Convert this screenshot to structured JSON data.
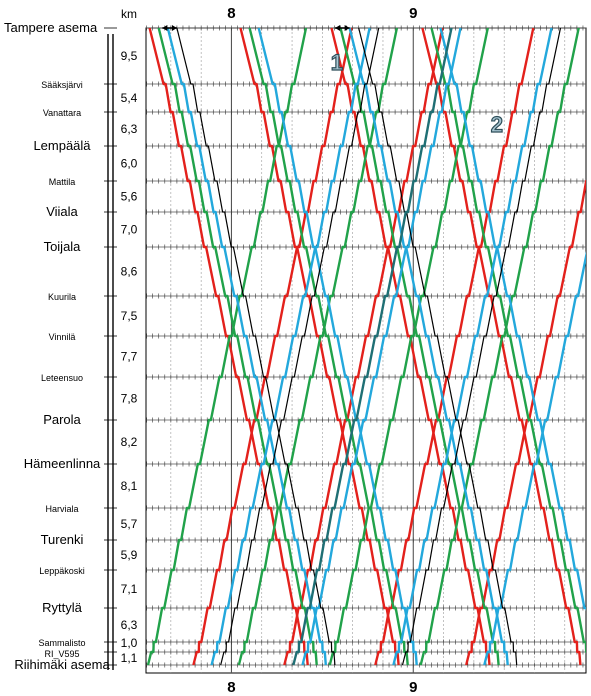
{
  "chart_data": {
    "type": "line",
    "title": "",
    "km_label": "km",
    "hour_labels": [
      {
        "hour": 8,
        "label": "8"
      },
      {
        "hour": 9,
        "label": "9"
      }
    ],
    "x_range_hours": [
      7.53,
      9.95
    ],
    "stations": [
      {
        "name": "Tampere asema",
        "major": true
      },
      {
        "name": "Sääksjärvi",
        "major": false
      },
      {
        "name": "Vanattara",
        "major": false
      },
      {
        "name": "Lempäälä",
        "major": true
      },
      {
        "name": "Mattila",
        "major": false
      },
      {
        "name": "Viiala",
        "major": true
      },
      {
        "name": "Toijala",
        "major": true
      },
      {
        "name": "Kuurila",
        "major": false
      },
      {
        "name": "Vinnilä",
        "major": false
      },
      {
        "name": "Leteensuo",
        "major": false
      },
      {
        "name": "Parola",
        "major": true
      },
      {
        "name": "Hämeenlinna",
        "major": true
      },
      {
        "name": "Harviala",
        "major": false
      },
      {
        "name": "Turenki",
        "major": true
      },
      {
        "name": "Leppäkoski",
        "major": false
      },
      {
        "name": "Ryttylä",
        "major": true
      },
      {
        "name": "Sammalisto",
        "major": false
      },
      {
        "name": "RI_V595",
        "major": false
      },
      {
        "name": "Riihimäki asema",
        "major": true
      }
    ],
    "section_km": [
      "9,5",
      "5,4",
      "6,3",
      "6,0",
      "5,6",
      "7,0",
      "8,6",
      "7,5",
      "7,7",
      "7,8",
      "8,2",
      "8,1",
      "5,7",
      "5,9",
      "7,1",
      "6,3",
      "1,0",
      "1,1"
    ],
    "colors": {
      "red": "#e3211c",
      "green": "#21a24a",
      "blue": "#23a8dc",
      "black": "#000000",
      "teal": "#1f6f74"
    },
    "series": [
      {
        "color": "red",
        "direction": "down",
        "start_hour": 7.55
      },
      {
        "color": "red",
        "direction": "down",
        "start_hour": 8.05
      },
      {
        "color": "red",
        "direction": "down",
        "start_hour": 8.55
      },
      {
        "color": "red",
        "direction": "down",
        "start_hour": 9.05
      },
      {
        "color": "red",
        "direction": "up",
        "start_hour": 7.78
      },
      {
        "color": "red",
        "direction": "up",
        "start_hour": 8.28
      },
      {
        "color": "red",
        "direction": "up",
        "start_hour": 8.78
      },
      {
        "color": "red",
        "direction": "up",
        "start_hour": 9.28
      },
      {
        "color": "green",
        "direction": "down",
        "start_hour": 7.6
      },
      {
        "color": "green",
        "direction": "down",
        "start_hour": 8.1
      },
      {
        "color": "green",
        "direction": "down",
        "start_hour": 8.6
      },
      {
        "color": "green",
        "direction": "down",
        "start_hour": 9.1
      },
      {
        "color": "green",
        "direction": "up",
        "start_hour": 7.53
      },
      {
        "color": "green",
        "direction": "up",
        "start_hour": 8.03
      },
      {
        "color": "green",
        "direction": "up",
        "start_hour": 8.53
      },
      {
        "color": "green",
        "direction": "up",
        "start_hour": 9.03
      },
      {
        "color": "blue",
        "direction": "down",
        "start_hour": 7.65
      },
      {
        "color": "blue",
        "direction": "down",
        "start_hour": 8.15
      },
      {
        "color": "blue",
        "direction": "down",
        "start_hour": 8.65
      },
      {
        "color": "blue",
        "direction": "down",
        "start_hour": 9.15
      },
      {
        "color": "blue",
        "direction": "up",
        "start_hour": 7.88
      },
      {
        "color": "blue",
        "direction": "up",
        "start_hour": 8.38
      },
      {
        "color": "blue",
        "direction": "up",
        "start_hour": 8.88
      },
      {
        "color": "blue",
        "direction": "up",
        "start_hour": 9.38
      },
      {
        "color": "black",
        "direction": "down",
        "start_hour": 7.7
      },
      {
        "color": "black",
        "direction": "down",
        "start_hour": 8.7
      },
      {
        "color": "black",
        "direction": "up",
        "start_hour": 7.93
      },
      {
        "color": "black",
        "direction": "up",
        "start_hour": 8.93
      },
      {
        "color": "teal",
        "direction": "up",
        "start_hour": 8.33
      }
    ],
    "markers": [
      {
        "label": "1",
        "hour": 8.58,
        "station": "Sääksjärvi"
      },
      {
        "label": "2",
        "hour": 9.46,
        "station": "Lempäälä"
      }
    ],
    "grid": true
  }
}
